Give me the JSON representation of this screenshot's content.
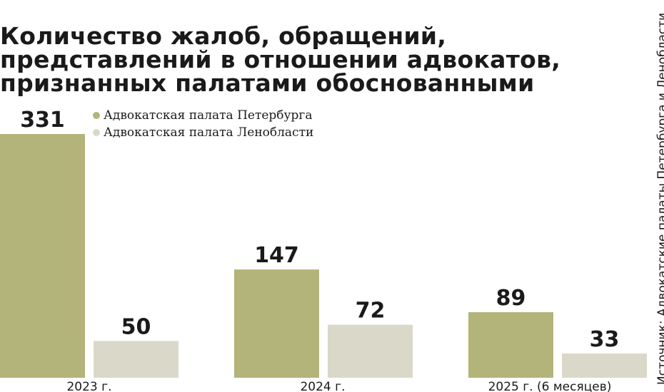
{
  "chart_data": {
    "type": "bar",
    "title_lines": [
      "Количество жалоб, обращений,",
      "представлений в отношении адвокатов,",
      "признанных палатами обоснованными"
    ],
    "categories": [
      "2023 г.",
      "2024 г.",
      "2025 г. (6 месяцев)"
    ],
    "series": [
      {
        "name": "Адвокатская палата Петербурга",
        "values": [
          331,
          147,
          89
        ],
        "color": "#b2b47a"
      },
      {
        "name": "Адвокатская палата Ленобласти",
        "values": [
          50,
          72,
          33
        ],
        "color": "#dad9c9"
      }
    ],
    "ylim": [
      0,
      331
    ],
    "grid": false,
    "legend_position": "top-left",
    "source": "Источник: Адвокатские палаты Петербурга и Ленобласти"
  }
}
